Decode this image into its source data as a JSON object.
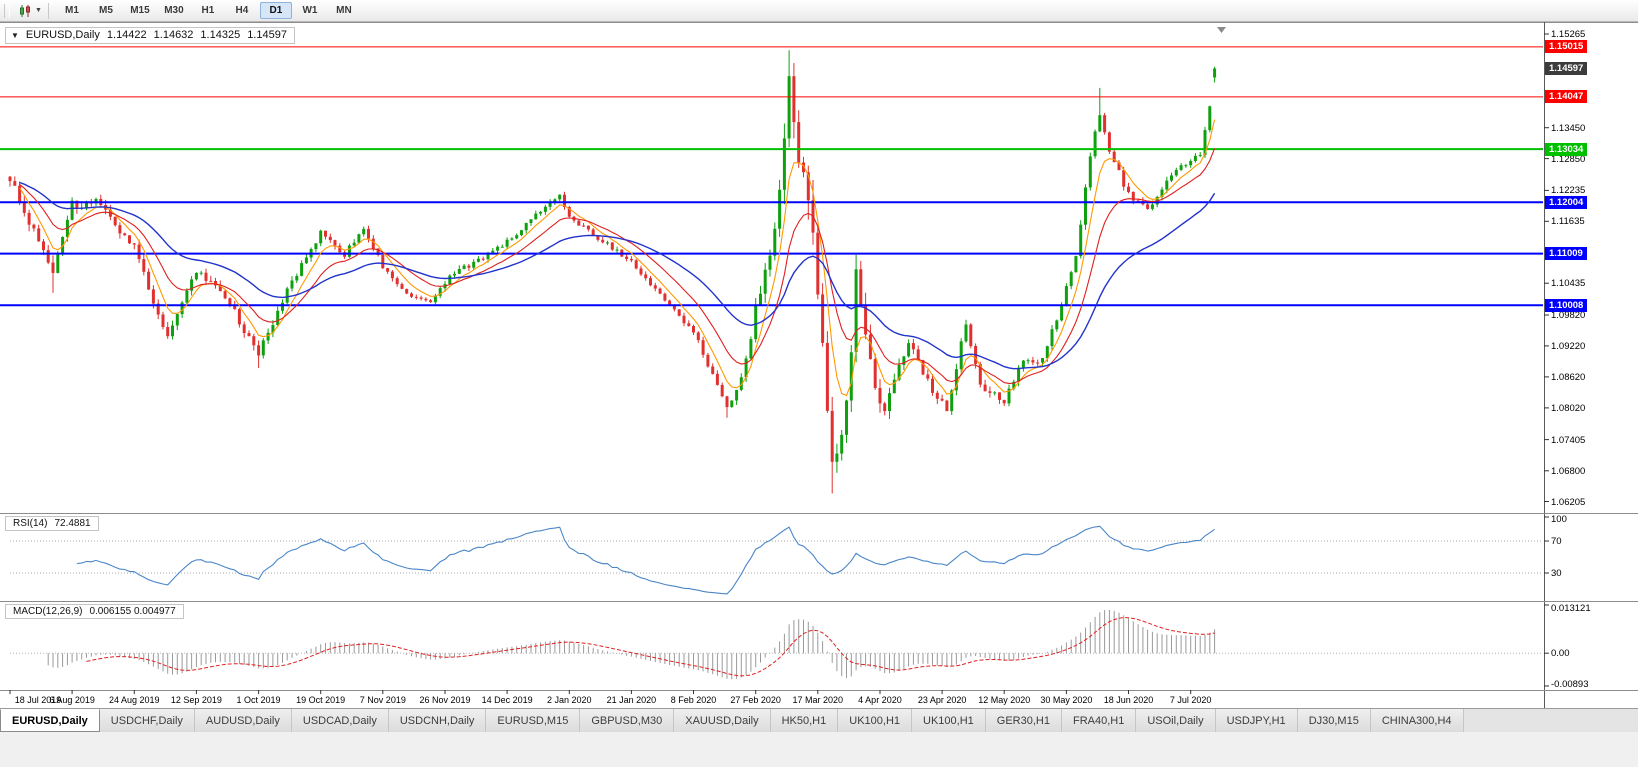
{
  "toolbar": {
    "timeframes": [
      {
        "label": "M1"
      },
      {
        "label": "M5"
      },
      {
        "label": "M15"
      },
      {
        "label": "M30"
      },
      {
        "label": "H1"
      },
      {
        "label": "H4"
      },
      {
        "label": "D1",
        "active": true
      },
      {
        "label": "W1"
      },
      {
        "label": "MN"
      }
    ]
  },
  "chart": {
    "collapse_icon": "▼",
    "symbol_title": "EURUSD,Daily",
    "ohlc": {
      "open": "1.14422",
      "high": "1.14632",
      "low": "1.14325",
      "close": "1.14597"
    },
    "colors": {
      "up": "#0FA00F",
      "down": "#E03030"
    },
    "view": {
      "price_min": 1.0606,
      "price_max": 1.1542,
      "candles": 253
    },
    "price_axis_labels": [
      {
        "text": "1.15265",
        "value": 1.15265
      },
      {
        "text": "1.13450",
        "value": 1.1345
      },
      {
        "text": "1.12850",
        "value": 1.1285
      },
      {
        "text": "1.12235",
        "value": 1.12235
      },
      {
        "text": "1.11635",
        "value": 1.11635
      },
      {
        "text": "1.10435",
        "value": 1.10435
      },
      {
        "text": "1.09820",
        "value": 1.0982
      },
      {
        "text": "1.09220",
        "value": 1.0922
      },
      {
        "text": "1.08620",
        "value": 1.0862
      },
      {
        "text": "1.08020",
        "value": 1.0802
      },
      {
        "text": "1.07405",
        "value": 1.07405
      },
      {
        "text": "1.06800",
        "value": 1.068
      },
      {
        "text": "1.06205",
        "value": 1.06205
      }
    ],
    "hlines": [
      {
        "label": "1.15015",
        "value": 1.15015,
        "color": "#FF0000",
        "width": 1
      },
      {
        "label": "1.14047",
        "value": 1.14047,
        "color": "#FF0000",
        "width": 1
      },
      {
        "label": "1.13034",
        "value": 1.13034,
        "color": "#00C000",
        "width": 2
      },
      {
        "label": "1.12004",
        "value": 1.12004,
        "color": "#0000FF",
        "width": 2
      },
      {
        "label": "1.11009",
        "value": 1.11009,
        "color": "#0000FF",
        "width": 2
      },
      {
        "label": "1.10008",
        "value": 1.10008,
        "color": "#0000FF",
        "width": 2
      }
    ],
    "current_price": {
      "label": "1.14597",
      "value": 1.14597,
      "badge_color": "#3C3C3C"
    },
    "date_labels": [
      "18 Jul 2019",
      "6 Aug 2019",
      "24 Aug 2019",
      "12 Sep 2019",
      "1 Oct 2019",
      "19 Oct 2019",
      "7 Nov 2019",
      "26 Nov 2019",
      "14 Dec 2019",
      "2 Jan 2020",
      "21 Jan 2020",
      "8 Feb 2020",
      "27 Feb 2020",
      "17 Mar 2020",
      "4 Apr 2020",
      "23 Apr 2020",
      "12 May 2020",
      "30 May 2020",
      "18 Jun 2020",
      "7 Jul 2020"
    ]
  },
  "chart_data": {
    "type": "candlestick",
    "symbol": "EURUSD",
    "timeframe": "Daily",
    "x_range": [
      "18 Jul 2019",
      "14 Jul 2020"
    ],
    "y_range": [
      1.0606,
      1.1542
    ],
    "last_ohlc": {
      "open": 1.14422,
      "high": 1.14632,
      "low": 1.14325,
      "close": 1.14597
    },
    "price_path": [
      [
        0,
        1.125,
        0.0018
      ],
      [
        4,
        1.1165,
        0.0018
      ],
      [
        9,
        1.1055,
        0.002
      ],
      [
        13,
        1.1195,
        0.0018
      ],
      [
        18,
        1.12,
        0.0014
      ],
      [
        26,
        1.1115,
        0.0014
      ],
      [
        31,
        1.0985,
        0.0014
      ],
      [
        33,
        1.0945,
        0.0013
      ],
      [
        39,
        1.1065,
        0.0014
      ],
      [
        44,
        1.1035,
        0.0013
      ],
      [
        52,
        1.0905,
        0.0014
      ],
      [
        58,
        1.103,
        0.0013
      ],
      [
        65,
        1.114,
        0.0011
      ],
      [
        70,
        1.11,
        0.001
      ],
      [
        74,
        1.115,
        0.001
      ],
      [
        78,
        1.1075,
        0.001
      ],
      [
        83,
        1.1025,
        0.0009
      ],
      [
        88,
        1.101,
        0.0009
      ],
      [
        93,
        1.1065,
        0.001
      ],
      [
        97,
        1.108,
        0.001
      ],
      [
        104,
        1.1125,
        0.0009
      ],
      [
        110,
        1.1175,
        0.0009
      ],
      [
        115,
        1.1215,
        0.0008
      ],
      [
        117,
        1.117,
        0.0008
      ],
      [
        124,
        1.1125,
        0.0008
      ],
      [
        130,
        1.1085,
        0.0008
      ],
      [
        136,
        1.102,
        0.0008
      ],
      [
        143,
        1.095,
        0.0008
      ],
      [
        150,
        1.08,
        0.0011
      ],
      [
        153,
        1.0855,
        0.0013
      ],
      [
        156,
        1.099,
        0.0022
      ],
      [
        160,
        1.1135,
        0.0032
      ],
      [
        163,
        1.1445,
        0.0042
      ],
      [
        165,
        1.129,
        0.0048
      ],
      [
        168,
        1.114,
        0.0055
      ],
      [
        172,
        1.069,
        0.0048
      ],
      [
        175,
        1.08,
        0.0042
      ],
      [
        177,
        1.106,
        0.0038
      ],
      [
        181,
        1.083,
        0.0028
      ],
      [
        183,
        1.0795,
        0.0022
      ],
      [
        188,
        1.093,
        0.0018
      ],
      [
        193,
        1.0835,
        0.0016
      ],
      [
        196,
        1.0795,
        0.0016
      ],
      [
        200,
        1.0965,
        0.0016
      ],
      [
        203,
        1.0845,
        0.0014
      ],
      [
        208,
        1.0815,
        0.0013
      ],
      [
        212,
        1.0895,
        0.0012
      ],
      [
        216,
        1.0895,
        0.0011
      ],
      [
        219,
        1.0975,
        0.0011
      ],
      [
        223,
        1.11,
        0.0012
      ],
      [
        226,
        1.129,
        0.0014
      ],
      [
        228,
        1.137,
        0.0016
      ],
      [
        230,
        1.13,
        0.0015
      ],
      [
        234,
        1.1215,
        0.0011
      ],
      [
        238,
        1.1185,
        0.0011
      ],
      [
        241,
        1.123,
        0.001
      ],
      [
        245,
        1.127,
        0.0009
      ],
      [
        249,
        1.1295,
        0.0009
      ],
      [
        251,
        1.139,
        0.001
      ],
      [
        252,
        1.146,
        0.001
      ]
    ],
    "extremes": [
      {
        "i": 9,
        "l": 1.1025
      },
      {
        "i": 52,
        "l": 1.0879
      },
      {
        "i": 150,
        "l": 1.0783
      },
      {
        "i": 163,
        "h": 1.1495
      },
      {
        "i": 172,
        "l": 1.0636
      },
      {
        "i": 228,
        "h": 1.1422
      }
    ],
    "moving_averages": [
      {
        "period": 6,
        "color": "#FF9900",
        "width": 1.1
      },
      {
        "period": 14,
        "color": "#E02020",
        "width": 1.1
      },
      {
        "period": 34,
        "color": "#2233CC",
        "width": 1.4
      }
    ],
    "level_lines": [
      1.15015,
      1.14047,
      1.13034,
      1.12004,
      1.11009,
      1.10008
    ]
  },
  "rsi": {
    "name": "RSI(14)",
    "value": "72.4881",
    "line_color": "#4A86C8",
    "axis_labels": [
      {
        "text": "100",
        "value": 100
      },
      {
        "text": "70",
        "value": 70
      },
      {
        "text": "30",
        "value": 30
      }
    ],
    "levels": [
      70,
      30
    ]
  },
  "macd": {
    "name": "MACD(12,26,9)",
    "values": "0.006155 0.004977",
    "histogram_color": "#9A9A9A",
    "signal_color": "#E02020",
    "axis_labels": [
      {
        "text": "0.013121",
        "value": 0.013121
      },
      {
        "text": "0.00",
        "value": 0
      },
      {
        "text": "-0.00893",
        "value": -0.00893
      }
    ],
    "range": {
      "max": 0.013121,
      "min": -0.00893
    }
  },
  "tabs": [
    {
      "label": "EURUSD,Daily",
      "active": true
    },
    {
      "label": "USDCHF,Daily"
    },
    {
      "label": "AUDUSD,Daily"
    },
    {
      "label": "USDCAD,Daily"
    },
    {
      "label": "USDCNH,Daily"
    },
    {
      "label": "EURUSD,M15"
    },
    {
      "label": "GBPUSD,M30"
    },
    {
      "label": "XAUUSD,Daily"
    },
    {
      "label": "HK50,H1"
    },
    {
      "label": "UK100,H1"
    },
    {
      "label": "UK100,H1"
    },
    {
      "label": "GER30,H1"
    },
    {
      "label": "FRA40,H1"
    },
    {
      "label": "USOil,Daily"
    },
    {
      "label": "USDJPY,H1"
    },
    {
      "label": "DJ30,M15"
    },
    {
      "label": "CHINA300,H4"
    }
  ]
}
